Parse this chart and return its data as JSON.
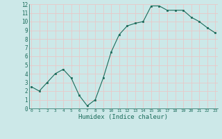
{
  "x": [
    0,
    1,
    2,
    3,
    4,
    5,
    6,
    7,
    8,
    9,
    10,
    11,
    12,
    13,
    14,
    15,
    16,
    17,
    18,
    19,
    20,
    21,
    22,
    23
  ],
  "y": [
    2.5,
    2.0,
    3.0,
    4.0,
    4.5,
    3.5,
    1.5,
    0.3,
    1.0,
    3.5,
    6.5,
    8.5,
    9.5,
    9.8,
    10.0,
    11.8,
    11.8,
    11.3,
    11.3,
    11.3,
    10.5,
    10.0,
    9.3,
    8.7
  ],
  "xlim": [
    0,
    23
  ],
  "ylim": [
    0,
    12
  ],
  "xlabel": "Humidex (Indice chaleur)",
  "xtick_labels": [
    "0",
    "1",
    "2",
    "3",
    "4",
    "5",
    "6",
    "7",
    "8",
    "9",
    "10",
    "11",
    "12",
    "13",
    "14",
    "15",
    "16",
    "17",
    "18",
    "19",
    "20",
    "21",
    "22",
    "23"
  ],
  "ytick_labels": [
    "0",
    "1",
    "2",
    "3",
    "4",
    "5",
    "6",
    "7",
    "8",
    "9",
    "10",
    "11",
    "12"
  ],
  "line_color": "#1a6b5a",
  "marker_color": "#1a6b5a",
  "bg_color": "#cce8e8",
  "grid_color": "#e8c8c8",
  "xlabel_color": "#1a6b5a"
}
